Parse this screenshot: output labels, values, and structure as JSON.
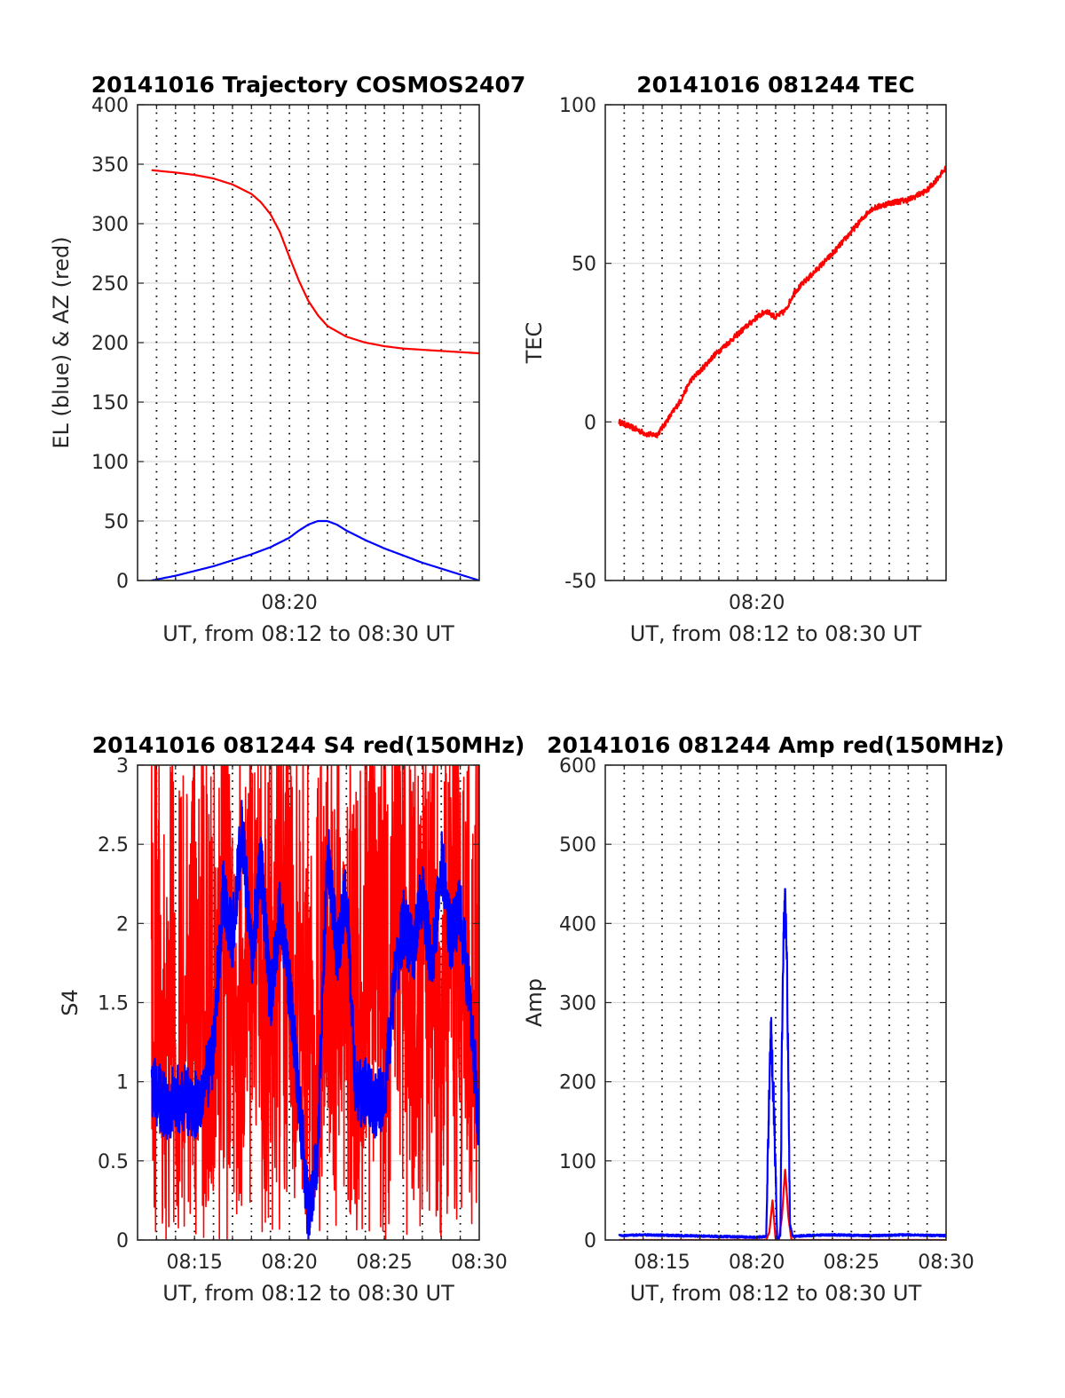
{
  "chart_data": [
    {
      "id": "trajectory",
      "type": "line",
      "title": "20141016 Trajectory COSMOS2407",
      "xlabel": "UT, from 08:12 to 08:30 UT",
      "ylabel": "EL (blue) & AZ (red)",
      "xlim": [
        "08:12",
        "08:30"
      ],
      "ylim": [
        0,
        400
      ],
      "yticks": [
        0,
        50,
        100,
        150,
        200,
        250,
        300,
        350,
        400
      ],
      "xticks": [
        "08:20"
      ],
      "grid": true,
      "series": [
        {
          "color": "#ff0000",
          "x": [
            "08:12:44",
            "08:14:00",
            "08:15:00",
            "08:16:00",
            "08:17:00",
            "08:18:00",
            "08:18:30",
            "08:19:00",
            "08:19:30",
            "08:20:00",
            "08:20:30",
            "08:21:00",
            "08:21:30",
            "08:22:00",
            "08:23:00",
            "08:24:00",
            "08:25:00",
            "08:26:00",
            "08:27:00",
            "08:28:00",
            "08:29:00",
            "08:30:00"
          ],
          "values": [
            345,
            343,
            341,
            338,
            333,
            325,
            318,
            308,
            293,
            272,
            252,
            235,
            223,
            214,
            205,
            200,
            197,
            195,
            194,
            193,
            192,
            191
          ]
        },
        {
          "color": "#0000ff",
          "x": [
            "08:12:44",
            "08:14:00",
            "08:15:00",
            "08:16:00",
            "08:17:00",
            "08:18:00",
            "08:19:00",
            "08:20:00",
            "08:20:30",
            "08:21:00",
            "08:21:30",
            "08:22:00",
            "08:22:30",
            "08:23:00",
            "08:24:00",
            "08:25:00",
            "08:26:00",
            "08:27:00",
            "08:28:00",
            "08:29:00",
            "08:30:00"
          ],
          "values": [
            0,
            4,
            8,
            12,
            17,
            22,
            28,
            36,
            42,
            47,
            50,
            50,
            47,
            42,
            34,
            27,
            21,
            15,
            10,
            5,
            0
          ]
        }
      ]
    },
    {
      "id": "tec",
      "type": "line",
      "title": "20141016 081244 TEC",
      "xlabel": "UT, from 08:12 to 08:30 UT",
      "ylabel": "TEC",
      "xlim": [
        "08:12",
        "08:30"
      ],
      "ylim": [
        -50,
        100
      ],
      "yticks": [
        -50,
        0,
        50,
        100
      ],
      "xticks": [
        "08:20"
      ],
      "grid": true,
      "series": [
        {
          "color": "#ff0000",
          "x": [
            "08:12:44",
            "08:13:30",
            "08:14:15",
            "08:14:45",
            "08:15:20",
            "08:16:00",
            "08:16:30",
            "08:17:00",
            "08:17:45",
            "08:18:30",
            "08:19:15",
            "08:20:00",
            "08:20:30",
            "08:21:00",
            "08:21:30",
            "08:22:00",
            "08:23:00",
            "08:24:00",
            "08:25:00",
            "08:26:00",
            "08:27:00",
            "08:28:00",
            "08:29:00",
            "08:30:00"
          ],
          "values": [
            0,
            -2,
            -4,
            -4,
            1,
            7,
            13,
            16,
            21,
            25,
            29,
            33,
            35,
            33,
            35,
            41,
            47,
            53,
            60,
            67,
            69,
            70,
            73,
            80
          ]
        }
      ]
    },
    {
      "id": "s4",
      "type": "line",
      "title": "20141016 081244 S4 red(150MHz)",
      "xlabel": "UT, from 08:12 to 08:30 UT",
      "ylabel": "S4",
      "xlim": [
        "08:12",
        "08:30"
      ],
      "ylim": [
        0,
        3
      ],
      "yticks": [
        0,
        0.5,
        1,
        1.5,
        2,
        2.5,
        3
      ],
      "xticks": [
        "08:15",
        "08:20",
        "08:25",
        "08:30"
      ],
      "grid": true,
      "series": [
        {
          "color": "#ff0000",
          "x": [
            "08:12:44",
            "08:13:30",
            "08:14:15",
            "08:15:00",
            "08:15:45",
            "08:16:30",
            "08:17:15",
            "08:18:00",
            "08:18:45",
            "08:19:30",
            "08:20:15",
            "08:21:00",
            "08:21:30",
            "08:22:00",
            "08:22:45",
            "08:23:30",
            "08:24:15",
            "08:25:00",
            "08:25:45",
            "08:26:30",
            "08:27:15",
            "08:28:00",
            "08:28:45",
            "08:29:30",
            "08:30:00"
          ],
          "values": [
            0.9,
            1.6,
            0.6,
            2.4,
            0.3,
            2.8,
            1.2,
            2.6,
            0.5,
            2.9,
            1.3,
            1.9,
            0.5,
            1.7,
            2.2,
            0.4,
            2.7,
            1.1,
            2.9,
            0.6,
            2.5,
            1.4,
            2.8,
            0.7,
            1.8
          ]
        },
        {
          "color": "#0000ff",
          "x": [
            "08:12:44",
            "08:13:30",
            "08:14:15",
            "08:15:00",
            "08:15:30",
            "08:16:00",
            "08:16:30",
            "08:17:00",
            "08:17:30",
            "08:18:00",
            "08:18:30",
            "08:19:00",
            "08:19:30",
            "08:20:00",
            "08:20:30",
            "08:21:00",
            "08:21:30",
            "08:22:00",
            "08:22:30",
            "08:23:00",
            "08:23:30",
            "08:24:00",
            "08:24:30",
            "08:25:00",
            "08:25:30",
            "08:26:00",
            "08:26:30",
            "08:27:00",
            "08:27:30",
            "08:28:00",
            "08:28:30",
            "08:29:00",
            "08:29:30",
            "08:30:00"
          ],
          "values": [
            0.95,
            0.85,
            0.9,
            0.85,
            0.95,
            1.2,
            2.2,
            1.9,
            2.6,
            1.8,
            2.4,
            1.5,
            2.1,
            1.6,
            0.9,
            0.15,
            0.6,
            2.5,
            1.8,
            2.2,
            0.9,
            0.95,
            0.85,
            0.9,
            1.6,
            2.0,
            1.8,
            2.2,
            1.7,
            2.4,
            1.9,
            2.1,
            1.5,
            0.7
          ]
        }
      ]
    },
    {
      "id": "amp",
      "type": "line",
      "title": "20141016 081244 Amp red(150MHz)",
      "xlabel": "UT, from 08:12 to 08:30 UT",
      "ylabel": "Amp",
      "xlim": [
        "08:12",
        "08:30"
      ],
      "ylim": [
        0,
        600
      ],
      "yticks": [
        0,
        100,
        200,
        300,
        400,
        500,
        600
      ],
      "xticks": [
        "08:15",
        "08:20",
        "08:25",
        "08:30"
      ],
      "grid": true,
      "series": [
        {
          "color": "#ff0000",
          "x": [
            "08:12:44",
            "08:20:30",
            "08:20:40",
            "08:20:50",
            "08:21:00",
            "08:21:10",
            "08:21:20",
            "08:21:30",
            "08:21:40",
            "08:21:50",
            "08:30:00"
          ],
          "values": [
            0,
            0,
            10,
            50,
            0,
            0,
            30,
            90,
            30,
            0,
            0
          ]
        },
        {
          "color": "#0000ff",
          "x": [
            "08:12:44",
            "08:14:00",
            "08:16:00",
            "08:18:00",
            "08:20:00",
            "08:20:30",
            "08:20:40",
            "08:20:45",
            "08:20:55",
            "08:21:05",
            "08:21:15",
            "08:21:20",
            "08:21:25",
            "08:21:30",
            "08:21:35",
            "08:21:40",
            "08:21:45",
            "08:21:55",
            "08:22:30",
            "08:24:00",
            "08:26:00",
            "08:28:00",
            "08:30:00"
          ],
          "values": [
            5,
            6,
            5,
            4,
            3,
            4,
            180,
            255,
            150,
            0,
            5,
            250,
            380,
            415,
            370,
            200,
            20,
            4,
            5,
            6,
            5,
            6,
            5
          ]
        }
      ]
    }
  ]
}
